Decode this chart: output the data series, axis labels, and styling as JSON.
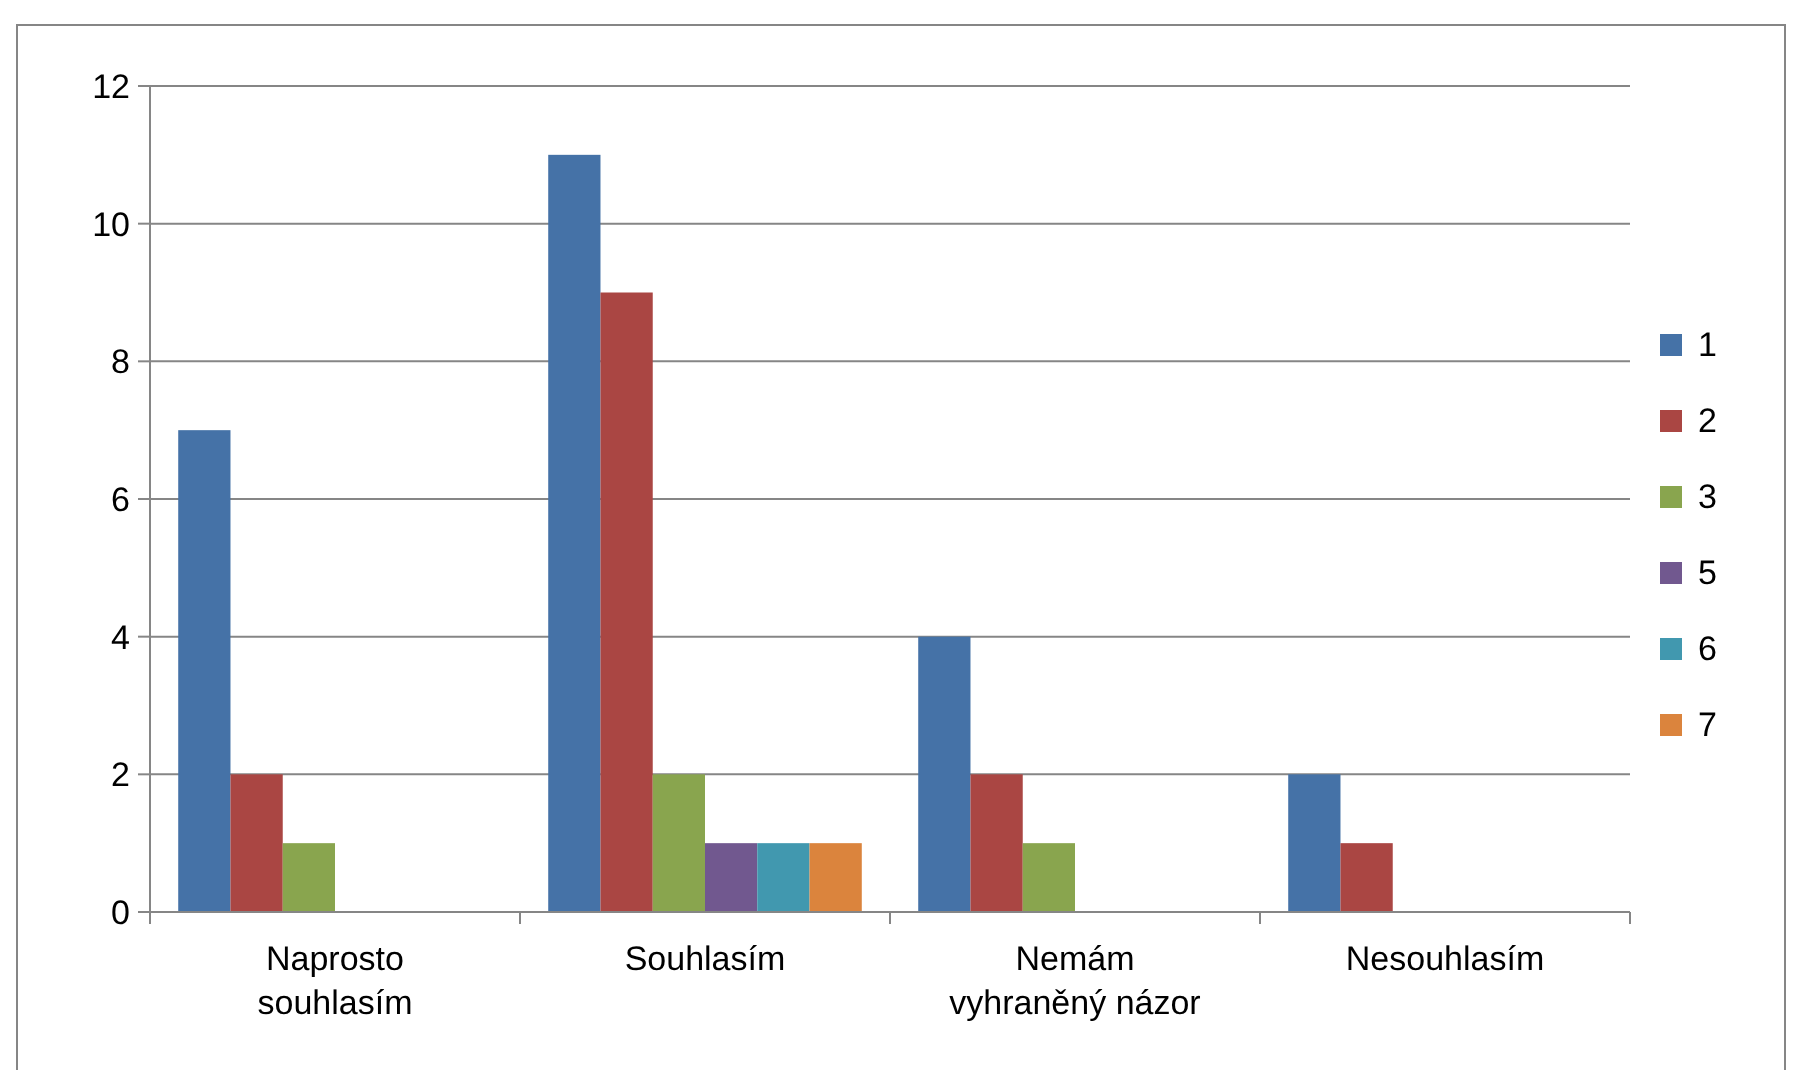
{
  "chart_data": {
    "type": "bar",
    "categories": [
      "Naprosto souhlasím",
      "Souhlasím",
      "Nemám vyhraněný názor",
      "Nesouhlasím"
    ],
    "series": [
      {
        "name": "1",
        "color": "#4572a7",
        "values": [
          7,
          11,
          4,
          2
        ]
      },
      {
        "name": "2",
        "color": "#aa4643",
        "values": [
          2,
          9,
          2,
          1
        ]
      },
      {
        "name": "3",
        "color": "#89a54e",
        "values": [
          1,
          2,
          1,
          0
        ]
      },
      {
        "name": "5",
        "color": "#71588f",
        "values": [
          0,
          1,
          0,
          0
        ]
      },
      {
        "name": "6",
        "color": "#4198af",
        "values": [
          0,
          1,
          0,
          0
        ]
      },
      {
        "name": "7",
        "color": "#db843d",
        "values": [
          0,
          1,
          0,
          0
        ]
      }
    ],
    "ylim": [
      0,
      12
    ],
    "yticks": [
      0,
      2,
      4,
      6,
      8,
      10,
      12
    ],
    "grid": "y",
    "legend": "right"
  }
}
